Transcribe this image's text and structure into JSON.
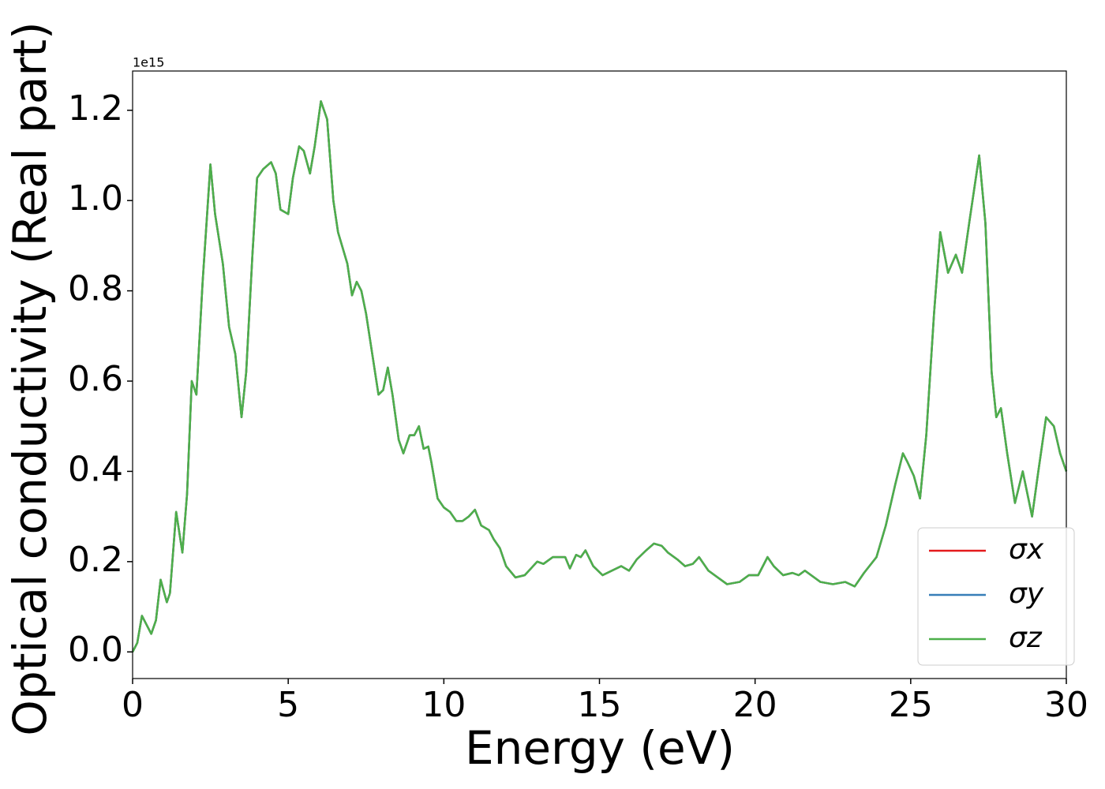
{
  "chart_data": {
    "type": "line",
    "y_label": "Optical conductivity (Real part)",
    "x_label": "Energy (eV)",
    "y_offset_label": "1e15",
    "xlim": [
      0,
      30
    ],
    "ylim": [
      -0.059,
      1.287
    ],
    "xticks": [
      0,
      5,
      10,
      15,
      20,
      25,
      30
    ],
    "yticks": [
      {
        "value": 0,
        "label": "0.0"
      },
      0.2,
      0.4,
      0.6,
      0.8,
      {
        "value": 1,
        "label": "1.0"
      },
      1.2
    ],
    "legend": "lower right",
    "x": [
      0,
      0.15,
      0.3,
      0.45,
      0.6,
      0.75,
      0.9,
      1.1,
      1.2,
      1.4,
      1.6,
      1.75,
      1.9,
      2.05,
      2.25,
      2.5,
      2.65,
      2.9,
      3.1,
      3.3,
      3.5,
      3.65,
      3.85,
      4.0,
      4.2,
      4.45,
      4.6,
      4.75,
      5.0,
      5.15,
      5.35,
      5.5,
      5.7,
      5.85,
      6.05,
      6.25,
      6.45,
      6.6,
      6.9,
      7.05,
      7.2,
      7.35,
      7.5,
      7.7,
      7.9,
      8.05,
      8.2,
      8.35,
      8.55,
      8.7,
      8.9,
      9.05,
      9.2,
      9.35,
      9.5,
      9.6,
      9.8,
      10.0,
      10.2,
      10.4,
      10.6,
      10.8,
      11.0,
      11.2,
      11.45,
      11.6,
      11.8,
      12.0,
      12.3,
      12.6,
      12.8,
      13.0,
      13.2,
      13.5,
      13.9,
      14.05,
      14.25,
      14.4,
      14.55,
      14.8,
      15.1,
      15.4,
      15.7,
      15.95,
      16.2,
      16.5,
      16.75,
      17.0,
      17.2,
      17.5,
      17.75,
      18.0,
      18.2,
      18.5,
      18.8,
      19.1,
      19.5,
      19.8,
      20.1,
      20.4,
      20.6,
      20.9,
      21.2,
      21.4,
      21.6,
      21.9,
      22.1,
      22.5,
      22.9,
      23.2,
      23.5,
      23.9,
      24.2,
      24.5,
      24.75,
      24.9,
      25.1,
      25.3,
      25.5,
      25.75,
      25.95,
      26.2,
      26.45,
      26.65,
      26.9,
      27.2,
      27.4,
      27.6,
      27.75,
      27.9,
      28.1,
      28.35,
      28.6,
      28.9,
      29.1,
      29.35,
      29.6,
      29.8,
      30
    ],
    "series": [
      {
        "name": "σx",
        "color": "#e41a1c",
        "values": [
          0,
          0.02,
          0.08,
          0.06,
          0.04,
          0.07,
          0.16,
          0.11,
          0.13,
          0.31,
          0.22,
          0.35,
          0.6,
          0.57,
          0.82,
          1.08,
          0.97,
          0.86,
          0.72,
          0.66,
          0.52,
          0.62,
          0.88,
          1.05,
          1.07,
          1.085,
          1.06,
          0.98,
          0.97,
          1.05,
          1.12,
          1.11,
          1.06,
          1.12,
          1.22,
          1.18,
          1.0,
          0.93,
          0.86,
          0.79,
          0.82,
          0.8,
          0.75,
          0.66,
          0.57,
          0.58,
          0.63,
          0.57,
          0.47,
          0.44,
          0.48,
          0.48,
          0.5,
          0.45,
          0.455,
          0.42,
          0.34,
          0.32,
          0.31,
          0.29,
          0.29,
          0.3,
          0.315,
          0.28,
          0.27,
          0.25,
          0.23,
          0.19,
          0.165,
          0.17,
          0.185,
          0.2,
          0.195,
          0.21,
          0.21,
          0.185,
          0.215,
          0.21,
          0.225,
          0.19,
          0.17,
          0.18,
          0.19,
          0.18,
          0.205,
          0.225,
          0.24,
          0.235,
          0.22,
          0.205,
          0.19,
          0.195,
          0.21,
          0.18,
          0.165,
          0.15,
          0.155,
          0.17,
          0.17,
          0.21,
          0.19,
          0.17,
          0.175,
          0.17,
          0.18,
          0.165,
          0.155,
          0.15,
          0.155,
          0.145,
          0.175,
          0.21,
          0.28,
          0.37,
          0.44,
          0.42,
          0.39,
          0.34,
          0.48,
          0.75,
          0.93,
          0.84,
          0.88,
          0.84,
          0.96,
          1.1,
          0.95,
          0.62,
          0.52,
          0.54,
          0.44,
          0.33,
          0.4,
          0.3,
          0.4,
          0.52,
          0.5,
          0.44,
          0.4
        ]
      },
      {
        "name": "σy",
        "color": "#377eb8",
        "values": [
          0,
          0.02,
          0.08,
          0.06,
          0.04,
          0.07,
          0.16,
          0.11,
          0.13,
          0.31,
          0.22,
          0.35,
          0.6,
          0.57,
          0.82,
          1.08,
          0.97,
          0.86,
          0.72,
          0.66,
          0.52,
          0.62,
          0.88,
          1.05,
          1.07,
          1.085,
          1.06,
          0.98,
          0.97,
          1.05,
          1.12,
          1.11,
          1.06,
          1.12,
          1.22,
          1.18,
          1.0,
          0.93,
          0.86,
          0.79,
          0.82,
          0.8,
          0.75,
          0.66,
          0.57,
          0.58,
          0.63,
          0.57,
          0.47,
          0.44,
          0.48,
          0.48,
          0.5,
          0.45,
          0.455,
          0.42,
          0.34,
          0.32,
          0.31,
          0.29,
          0.29,
          0.3,
          0.315,
          0.28,
          0.27,
          0.25,
          0.23,
          0.19,
          0.165,
          0.17,
          0.185,
          0.2,
          0.195,
          0.21,
          0.21,
          0.185,
          0.215,
          0.21,
          0.225,
          0.19,
          0.17,
          0.18,
          0.19,
          0.18,
          0.205,
          0.225,
          0.24,
          0.235,
          0.22,
          0.205,
          0.19,
          0.195,
          0.21,
          0.18,
          0.165,
          0.15,
          0.155,
          0.17,
          0.17,
          0.21,
          0.19,
          0.17,
          0.175,
          0.17,
          0.18,
          0.165,
          0.155,
          0.15,
          0.155,
          0.145,
          0.175,
          0.21,
          0.28,
          0.37,
          0.44,
          0.42,
          0.39,
          0.34,
          0.48,
          0.75,
          0.93,
          0.84,
          0.88,
          0.84,
          0.96,
          1.1,
          0.95,
          0.62,
          0.52,
          0.54,
          0.44,
          0.33,
          0.4,
          0.3,
          0.4,
          0.52,
          0.5,
          0.44,
          0.4
        ]
      },
      {
        "name": "σz",
        "color": "#4daf4a",
        "values": [
          0,
          0.02,
          0.08,
          0.06,
          0.04,
          0.07,
          0.16,
          0.11,
          0.13,
          0.31,
          0.22,
          0.35,
          0.6,
          0.57,
          0.82,
          1.08,
          0.97,
          0.86,
          0.72,
          0.66,
          0.52,
          0.62,
          0.88,
          1.05,
          1.07,
          1.085,
          1.06,
          0.98,
          0.97,
          1.05,
          1.12,
          1.11,
          1.06,
          1.12,
          1.22,
          1.18,
          1.0,
          0.93,
          0.86,
          0.79,
          0.82,
          0.8,
          0.75,
          0.66,
          0.57,
          0.58,
          0.63,
          0.57,
          0.47,
          0.44,
          0.48,
          0.48,
          0.5,
          0.45,
          0.455,
          0.42,
          0.34,
          0.32,
          0.31,
          0.29,
          0.29,
          0.3,
          0.315,
          0.28,
          0.27,
          0.25,
          0.23,
          0.19,
          0.165,
          0.17,
          0.185,
          0.2,
          0.195,
          0.21,
          0.21,
          0.185,
          0.215,
          0.21,
          0.225,
          0.19,
          0.17,
          0.18,
          0.19,
          0.18,
          0.205,
          0.225,
          0.24,
          0.235,
          0.22,
          0.205,
          0.19,
          0.195,
          0.21,
          0.18,
          0.165,
          0.15,
          0.155,
          0.17,
          0.17,
          0.21,
          0.19,
          0.17,
          0.175,
          0.17,
          0.18,
          0.165,
          0.155,
          0.15,
          0.155,
          0.145,
          0.175,
          0.21,
          0.28,
          0.37,
          0.44,
          0.42,
          0.39,
          0.34,
          0.48,
          0.75,
          0.93,
          0.84,
          0.88,
          0.84,
          0.96,
          1.1,
          0.95,
          0.62,
          0.52,
          0.54,
          0.44,
          0.33,
          0.4,
          0.3,
          0.4,
          0.52,
          0.5,
          0.44,
          0.4
        ]
      }
    ]
  }
}
